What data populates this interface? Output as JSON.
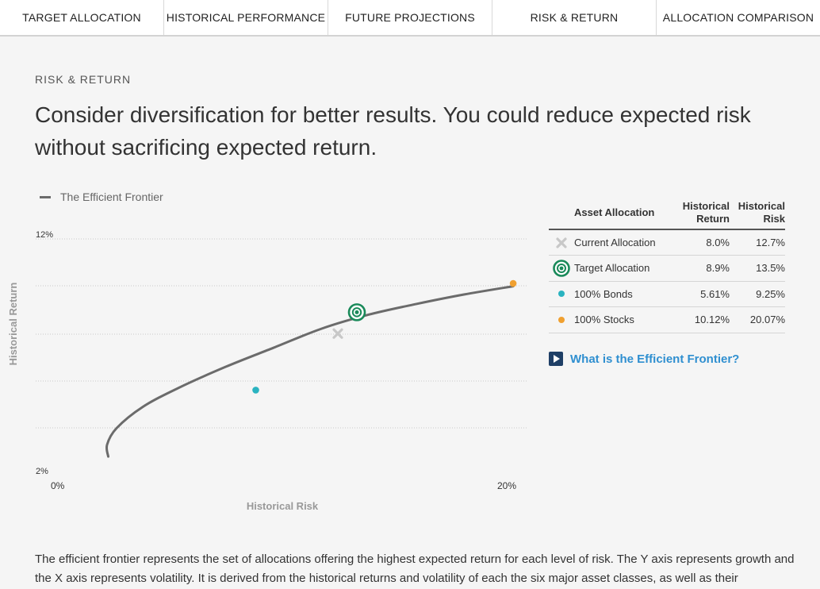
{
  "tabs": [
    {
      "label": "TARGET ALLOCATION"
    },
    {
      "label": "HISTORICAL PERFORMANCE"
    },
    {
      "label": "FUTURE PROJECTIONS"
    },
    {
      "label": "RISK & RETURN"
    },
    {
      "label": "ALLOCATION COMPARISON"
    }
  ],
  "section": {
    "eyebrow": "RISK & RETURN",
    "headline": "Consider diversification for better results. You could reduce expected risk without sacrificing expected return."
  },
  "colors": {
    "frontier": "#6b6b6b",
    "target": "#1a8a5a",
    "bonds": "#2ab3c0",
    "stocks": "#f0a030",
    "current": "#c8c8c8",
    "link": "#2f8fd0"
  },
  "chart_data": {
    "type": "line",
    "legend": "The Efficient Frontier",
    "xlabel": "Historical Risk",
    "ylabel": "Historical Return",
    "xlim": [
      0,
      20
    ],
    "ylim": [
      2,
      12
    ],
    "x_ticks": [
      "0%",
      "20%"
    ],
    "y_ticks": [
      "12%",
      "2%"
    ],
    "frontier": [
      {
        "x": 3.05,
        "y": 2.8
      },
      {
        "x": 3.0,
        "y": 3.3
      },
      {
        "x": 3.4,
        "y": 4.0
      },
      {
        "x": 4.5,
        "y": 4.9
      },
      {
        "x": 6.0,
        "y": 5.7
      },
      {
        "x": 8.0,
        "y": 6.6
      },
      {
        "x": 10.0,
        "y": 7.4
      },
      {
        "x": 12.0,
        "y": 8.2
      },
      {
        "x": 14.0,
        "y": 8.8
      },
      {
        "x": 16.0,
        "y": 9.25
      },
      {
        "x": 18.0,
        "y": 9.65
      },
      {
        "x": 20.07,
        "y": 10.0
      }
    ],
    "points": [
      {
        "name": "Current Allocation",
        "x": 12.7,
        "y": 8.0,
        "marker": "x"
      },
      {
        "name": "Target Allocation",
        "x": 13.5,
        "y": 8.9,
        "marker": "target"
      },
      {
        "name": "100% Bonds",
        "x": 9.25,
        "y": 5.61,
        "marker": "dot"
      },
      {
        "name": "100% Stocks",
        "x": 20.07,
        "y": 10.12,
        "marker": "dot"
      }
    ],
    "gridlines": true
  },
  "table": {
    "headers": {
      "allocation": "Asset Allocation",
      "return_line1": "Historical",
      "return_line2": "Return",
      "risk_line1": "Historical",
      "risk_line2": "Risk"
    },
    "rows": [
      {
        "label": "Current Allocation",
        "return": "8.0%",
        "risk": "12.7%",
        "icon": "x-icon"
      },
      {
        "label": "Target Allocation",
        "return": "8.9%",
        "risk": "13.5%",
        "icon": "target-icon"
      },
      {
        "label": "100% Bonds",
        "return": "5.61%",
        "risk": "9.25%",
        "icon": "dot-icon"
      },
      {
        "label": "100% Stocks",
        "return": "10.12%",
        "risk": "20.07%",
        "icon": "dot-icon"
      }
    ]
  },
  "link": {
    "label": "What is the Efficient Frontier?",
    "icon": "play-icon"
  },
  "description": "The efficient frontier represents the set of allocations offering the highest expected return for each level of risk. The Y axis represents growth and the X axis represents volatility. It is derived from the historical returns and volatility of each the six major asset classes, as well as their"
}
